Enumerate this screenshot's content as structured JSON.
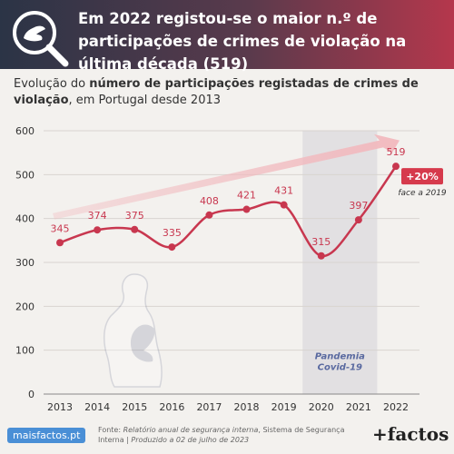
{
  "header": {
    "title": "Em 2022 registou-se o maior n.º de participações de crimes de violação na última década (519)"
  },
  "subtitle": {
    "prefix": "Evolução do ",
    "bold": "número de participações registadas de crimes de violação",
    "suffix": ", em Portugal desde 2013"
  },
  "chart_data": {
    "type": "line",
    "categories": [
      "2013",
      "2014",
      "2015",
      "2016",
      "2017",
      "2018",
      "2019",
      "2020",
      "2021",
      "2022"
    ],
    "values": [
      345,
      374,
      375,
      335,
      408,
      421,
      431,
      315,
      397,
      519
    ],
    "ylim": [
      0,
      600
    ],
    "yticks": [
      0,
      100,
      200,
      300,
      400,
      500,
      600
    ],
    "grid": true,
    "shaded_region": {
      "from": "2020",
      "to": "2021",
      "label_line1": "Pandemia",
      "label_line2": "Covid-19"
    },
    "annotation": {
      "value": "+20%",
      "note": "face a 2019"
    },
    "colors": {
      "line": "#c8374f",
      "band": "#e2e0e2",
      "arrow": "#f2b8bd",
      "badge": "#d63a4c"
    }
  },
  "footer": {
    "logo": "maisfactos.pt",
    "source_prefix": "Fonte: ",
    "source_italic": "Relatório anual de segurança interna",
    "source_rest": ", Sistema de Segurança Interna | ",
    "produced": "Produzido a 02 de julho de 2023",
    "brand": "+factos"
  },
  "icons": {
    "header": "magnifier-hand-icon",
    "figure": "silhouette-figure-icon"
  }
}
